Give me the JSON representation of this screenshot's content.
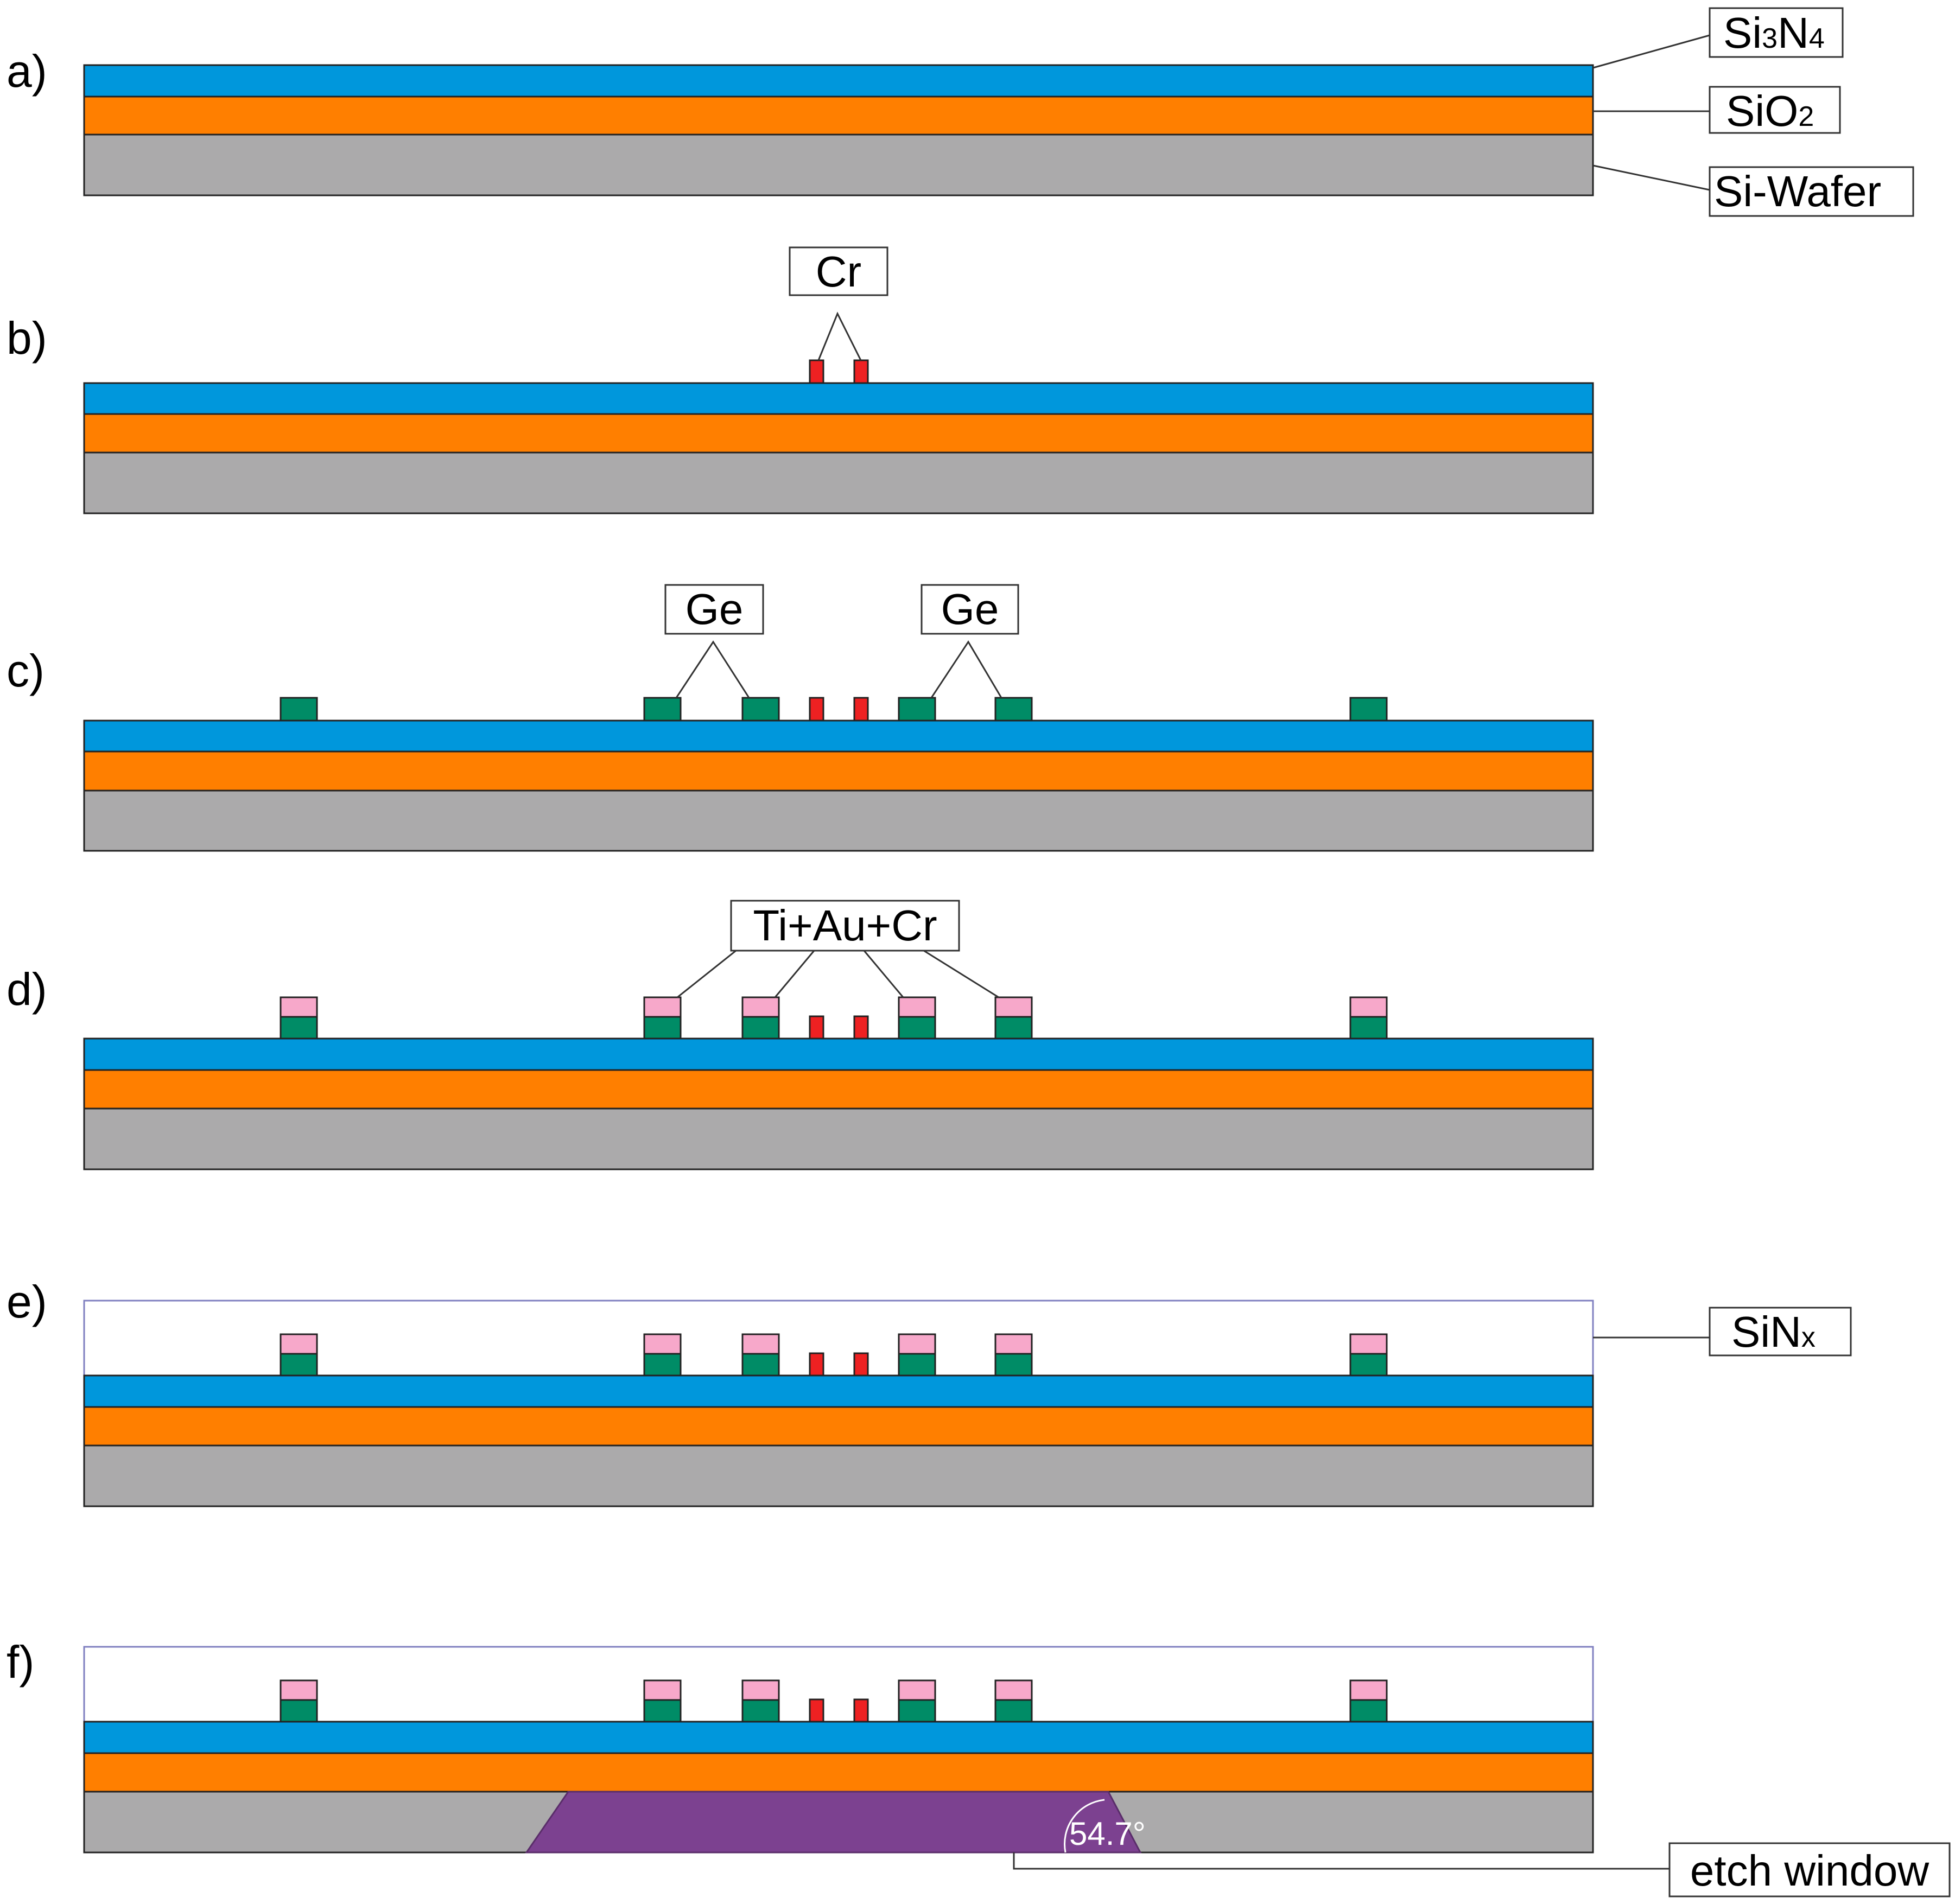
{
  "diagram": {
    "colors": {
      "si3n4": "#0097DC",
      "sio2": "#FF7F00",
      "wafer": "#ABAAAB",
      "cr": "#EE2122",
      "ge": "#008C66",
      "metal": "#F7A8CA",
      "etch": "#7C4190",
      "sinx_outline": "#8080C0",
      "outline": "#222222"
    },
    "steps": [
      {
        "label": "a)"
      },
      {
        "label": "b)"
      },
      {
        "label": "c)"
      },
      {
        "label": "d)"
      },
      {
        "label": "e)"
      },
      {
        "label": "f)"
      }
    ],
    "labels": {
      "si3n4": {
        "main": "Si",
        "sub1": "3",
        "mid": "N",
        "sub2": "4"
      },
      "sio2": {
        "main": "SiO",
        "sub": "2"
      },
      "wafer": "Si-Wafer",
      "cr": "Cr",
      "ge_left": "Ge",
      "ge_right": "Ge",
      "metal": "Ti+Au+Cr",
      "sinx": {
        "main": "SiN",
        "sub": "x"
      },
      "etch": "etch window",
      "angle": "54.7°"
    }
  }
}
